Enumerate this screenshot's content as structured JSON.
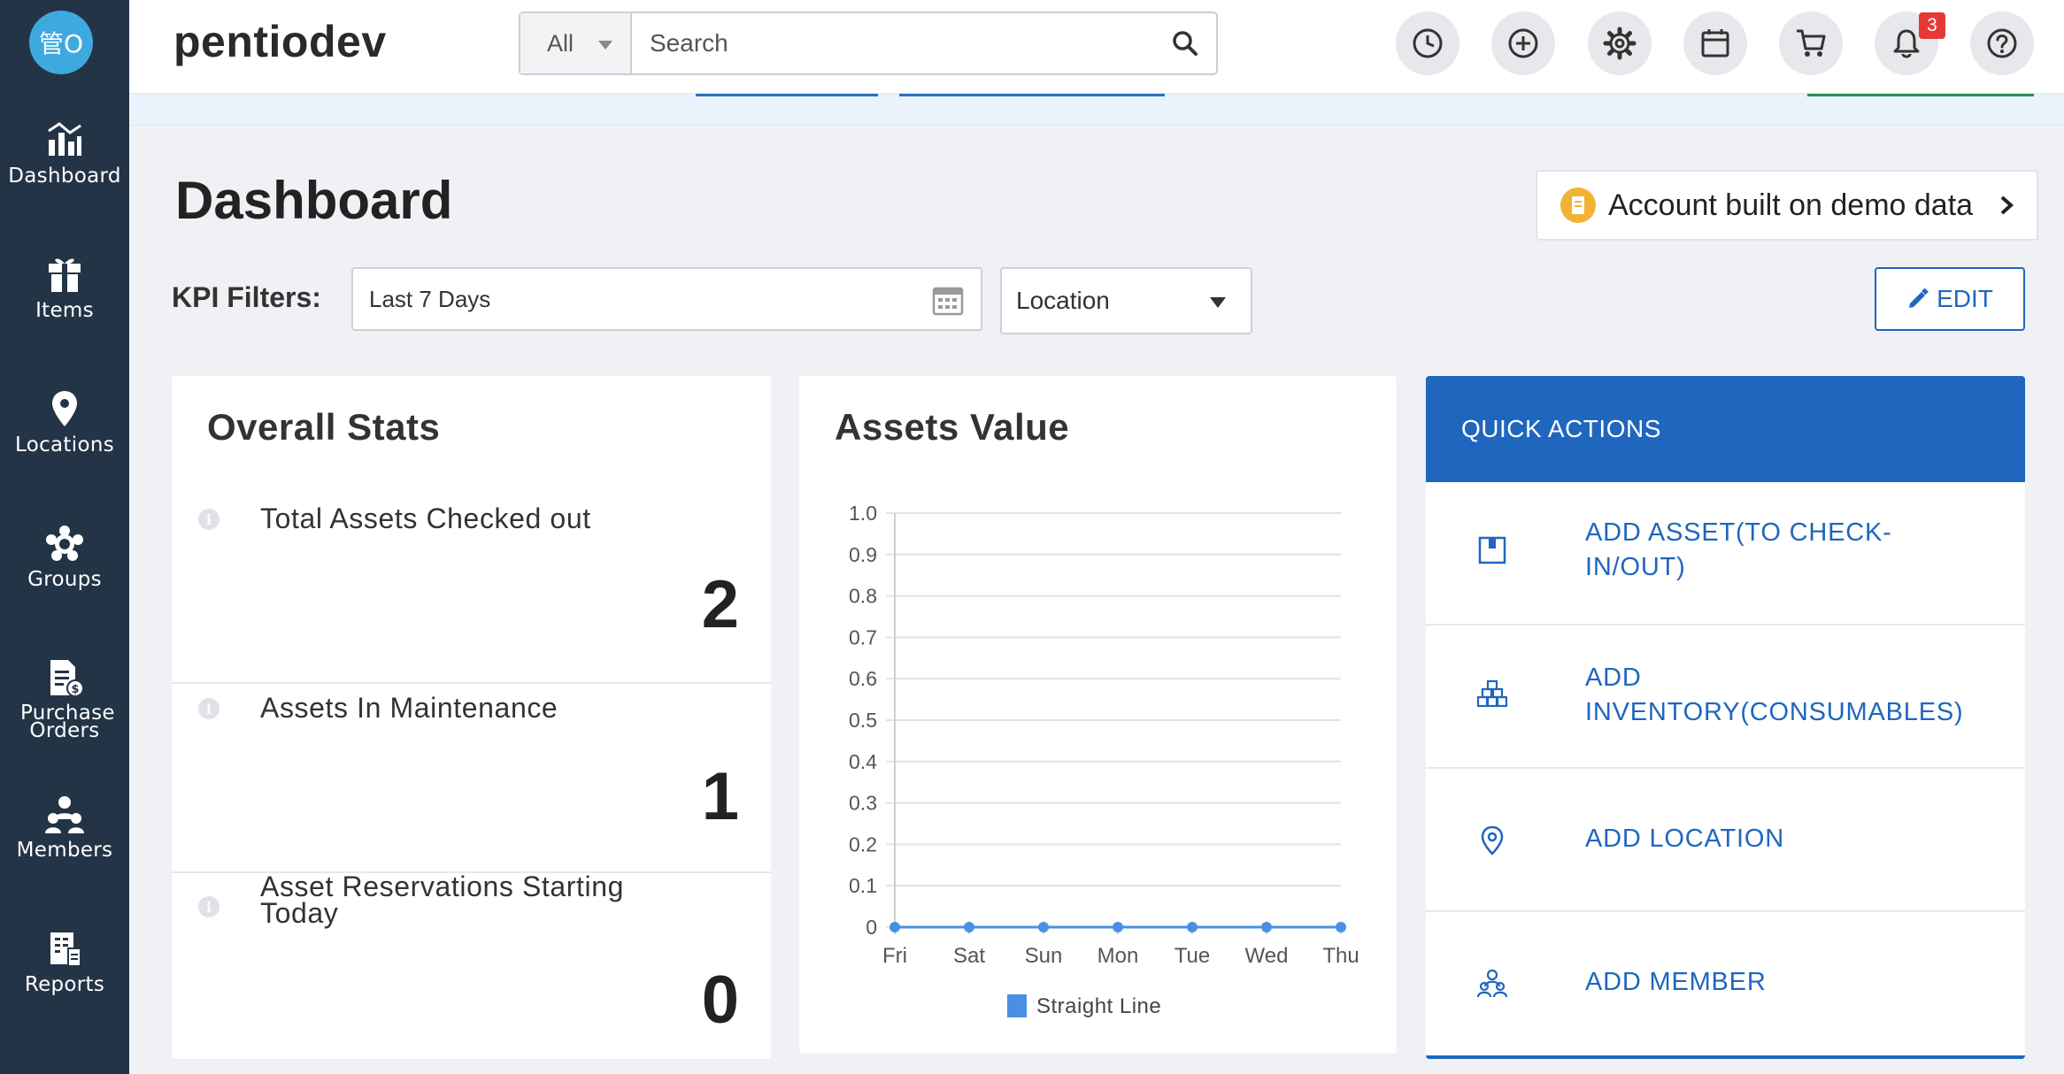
{
  "header": {
    "avatar_text": "管O",
    "brand": "pentiodev",
    "search_scope": "All",
    "search_placeholder": "Search",
    "notification_count": "3"
  },
  "sidebar": {
    "items": [
      {
        "label": "Dashboard",
        "icon": "dashboard-icon"
      },
      {
        "label": "Items",
        "icon": "items-icon"
      },
      {
        "label": "Locations",
        "icon": "location-pin-icon"
      },
      {
        "label": "Groups",
        "icon": "groups-icon"
      },
      {
        "label": "Purchase Orders",
        "icon": "purchase-orders-icon"
      },
      {
        "label": "Members",
        "icon": "members-icon"
      },
      {
        "label": "Reports",
        "icon": "reports-icon"
      }
    ]
  },
  "page": {
    "title": "Dashboard",
    "demo_notice": "Account built on demo data",
    "kpi_label": "KPI Filters:",
    "date_filter": "Last 7 Days",
    "location_filter": "Location",
    "edit_label": "EDIT"
  },
  "overall_stats": {
    "title": "Overall Stats",
    "rows": [
      {
        "label": "Total Assets Checked out",
        "value": "2"
      },
      {
        "label": "Assets In Maintenance",
        "value": "1"
      },
      {
        "label": "Asset Reservations Starting Today",
        "value": "0"
      }
    ]
  },
  "assets_value": {
    "title": "Assets Value"
  },
  "chart_data": {
    "type": "line",
    "title": "Assets Value",
    "categories": [
      "Fri",
      "Sat",
      "Sun",
      "Mon",
      "Tue",
      "Wed",
      "Thu"
    ],
    "series": [
      {
        "name": "Straight Line",
        "values": [
          0,
          0,
          0,
          0,
          0,
          0,
          0
        ],
        "color": "#4a90e2"
      }
    ],
    "yticks": [
      "0",
      "0.1",
      "0.2",
      "0.3",
      "0.4",
      "0.5",
      "0.6",
      "0.7",
      "0.8",
      "0.9",
      "1.0"
    ],
    "ylim": [
      0,
      1.0
    ],
    "grid": true,
    "legend": "bottom"
  },
  "quick_actions": {
    "title": "QUICK ACTIONS",
    "items": [
      {
        "label": "ADD ASSET(TO CHECK-IN/OUT)",
        "icon": "asset-box-icon"
      },
      {
        "label": "ADD INVENTORY(CONSUMABLES)",
        "icon": "inventory-boxes-icon"
      },
      {
        "label": "ADD LOCATION",
        "icon": "location-pin-icon"
      },
      {
        "label": "ADD MEMBER",
        "icon": "member-group-icon"
      }
    ]
  },
  "colors": {
    "sidebar": "#243447",
    "accent": "#1f66bf",
    "badge": "#e53935",
    "chart_line": "#4a90e2"
  }
}
